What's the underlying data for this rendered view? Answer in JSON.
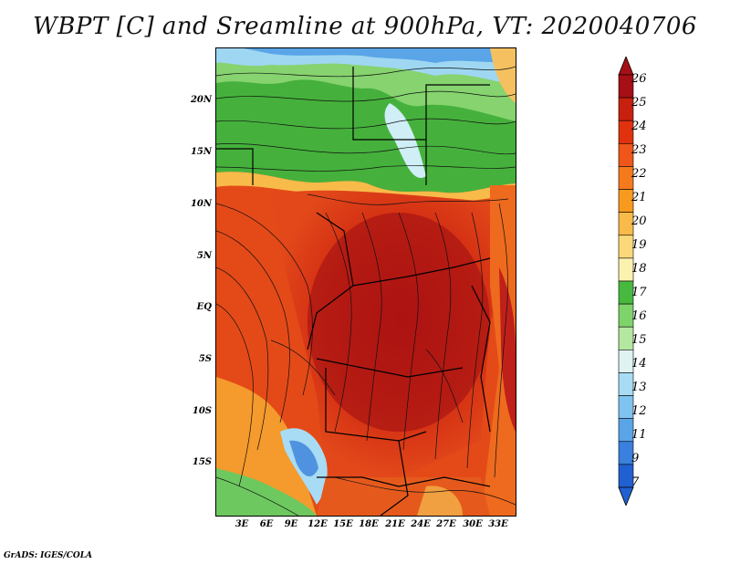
{
  "title": "WBPT [C] and Sreamline at 900hPa, VT: 2020040706",
  "y_axis": {
    "labels": [
      "20N",
      "15N",
      "10N",
      "5N",
      "EQ",
      "5S",
      "10S",
      "15S"
    ]
  },
  "x_axis": {
    "labels": [
      "3E",
      "6E",
      "9E",
      "12E",
      "15E",
      "18E",
      "21E",
      "24E",
      "27E",
      "30E",
      "33E"
    ]
  },
  "colorbar": {
    "labels": [
      "26",
      "25",
      "24",
      "23",
      "22",
      "21",
      "20",
      "19",
      "18",
      "17",
      "16",
      "15",
      "14",
      "13",
      "12",
      "11",
      "9",
      "7"
    ],
    "colors": [
      "#a50f15",
      "#c8200e",
      "#e0320e",
      "#f0561a",
      "#f57a1c",
      "#f79a1e",
      "#f8bb4a",
      "#fbd97a",
      "#fcf2b0",
      "#47b93f",
      "#7fd36b",
      "#b4e8a0",
      "#dff3f3",
      "#a8dcf4",
      "#7fc4f0",
      "#5aa5e8",
      "#3a80de",
      "#2060d0"
    ]
  },
  "footer": "GrADS: IGES/COLA"
}
